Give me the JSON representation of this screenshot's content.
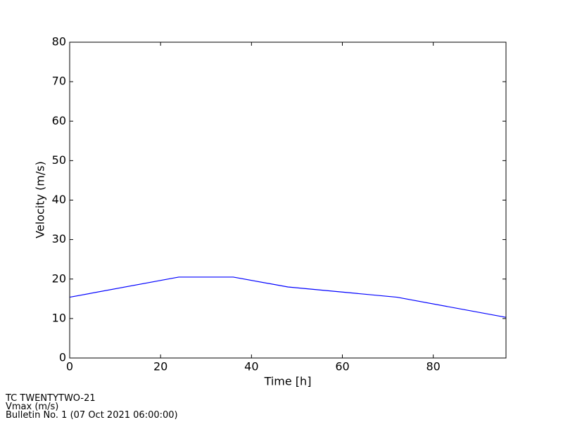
{
  "chart_data": {
    "type": "line",
    "xlabel": "Time [h]",
    "ylabel": "Velocity (m/s)",
    "x": [
      0,
      24,
      36,
      48,
      72,
      96
    ],
    "series": [
      {
        "name": "Vmax",
        "color": "#0000ff",
        "values": [
          15.4,
          20.5,
          20.5,
          18,
          15.4,
          10.3
        ]
      }
    ],
    "xlim": [
      0,
      96
    ],
    "xticks": [
      0,
      20,
      40,
      60,
      80
    ],
    "ylim": [
      0,
      80
    ],
    "yticks": [
      0,
      10,
      20,
      30,
      40,
      50,
      60,
      70,
      80
    ],
    "grid": false,
    "annotations": [
      "TC TWENTYTWO-21",
      "Vmax (m/s)",
      "Bulletin No. 1 (07 Oct 2021  06:00:00)"
    ]
  }
}
